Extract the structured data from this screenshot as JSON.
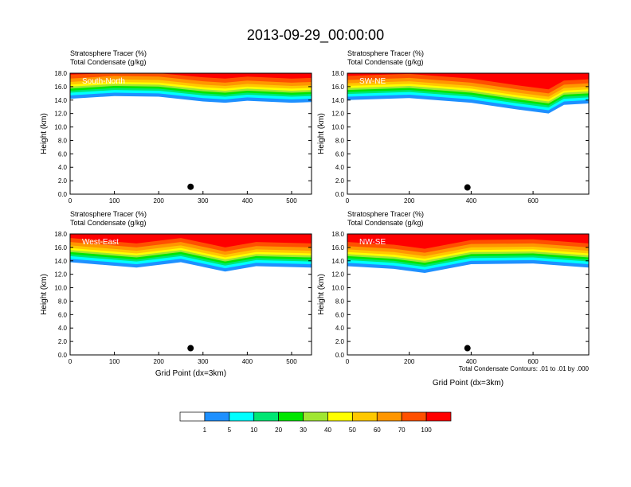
{
  "title": "2013-09-29_00:00:00",
  "chart_data": [
    {
      "type": "contour",
      "panel": "South-North",
      "subtitle_1": "Stratosphere Tracer   (%)",
      "subtitle_2": "Total Condensate   (g/kg)",
      "ylabel": "Height (km)",
      "xlabel": "",
      "xlim": [
        0,
        545
      ],
      "xticks": [
        "0",
        "100",
        "200",
        "300",
        "400",
        "500"
      ],
      "xtick_values": [
        0,
        100,
        200,
        300,
        400,
        500
      ],
      "ylim": [
        0,
        18
      ],
      "yticks": [
        "0.0",
        "2.0",
        "4.0",
        "6.0",
        "8.0",
        "10.0",
        "12.0",
        "14.0",
        "16.0",
        "18.0"
      ],
      "yvalues": [
        0,
        2,
        4,
        6,
        8,
        10,
        12,
        14,
        16,
        18
      ],
      "tracer_top_km": 18,
      "tracer_base_km": [
        [
          0,
          14.2
        ],
        [
          100,
          14.6
        ],
        [
          200,
          14.5
        ],
        [
          300,
          13.8
        ],
        [
          350,
          13.6
        ],
        [
          400,
          13.9
        ],
        [
          500,
          13.6
        ],
        [
          545,
          13.7
        ]
      ],
      "marker_x": 272,
      "marker_km": 1.1
    },
    {
      "type": "contour",
      "panel": "SW-NE",
      "subtitle_1": "Stratosphere Tracer   (%)",
      "subtitle_2": "Total Condensate   (g/kg)",
      "ylabel": "Height (km)",
      "xlabel": "",
      "xlim": [
        0,
        780
      ],
      "xticks": [
        "0",
        "200",
        "400",
        "600"
      ],
      "xtick_values": [
        0,
        200,
        400,
        600
      ],
      "ylim": [
        0,
        18
      ],
      "yticks": [
        "0.0",
        "2.0",
        "4.0",
        "6.0",
        "8.0",
        "10.0",
        "12.0",
        "14.0",
        "16.0",
        "18.0"
      ],
      "yvalues": [
        0,
        2,
        4,
        6,
        8,
        10,
        12,
        14,
        16,
        18
      ],
      "tracer_top_km": 18,
      "tracer_base_km": [
        [
          0,
          14.0
        ],
        [
          200,
          14.3
        ],
        [
          400,
          13.6
        ],
        [
          550,
          12.6
        ],
        [
          650,
          12.0
        ],
        [
          700,
          13.3
        ],
        [
          780,
          13.5
        ]
      ],
      "marker_x": 388,
      "marker_km": 1.0
    },
    {
      "type": "contour",
      "panel": "West-East",
      "subtitle_1": "Stratosphere Tracer   (%)",
      "subtitle_2": "Total Condensate   (g/kg)",
      "ylabel": "Height (km)",
      "xlabel": "Grid Point (dx=3km)",
      "xlim": [
        0,
        545
      ],
      "xticks": [
        "0",
        "100",
        "200",
        "300",
        "400",
        "500"
      ],
      "xtick_values": [
        0,
        100,
        200,
        300,
        400,
        500
      ],
      "ylim": [
        0,
        18
      ],
      "yticks": [
        "0.0",
        "2.0",
        "4.0",
        "6.0",
        "8.0",
        "10.0",
        "12.0",
        "14.0",
        "16.0",
        "18.0"
      ],
      "yvalues": [
        0,
        2,
        4,
        6,
        8,
        10,
        12,
        14,
        16,
        18
      ],
      "tracer_top_km": 18,
      "tracer_base_km": [
        [
          0,
          13.8
        ],
        [
          150,
          13.0
        ],
        [
          250,
          13.8
        ],
        [
          350,
          12.4
        ],
        [
          420,
          13.2
        ],
        [
          545,
          13.0
        ]
      ],
      "marker_x": 272,
      "marker_km": 1.0
    },
    {
      "type": "contour",
      "panel": "NW-SE",
      "subtitle_1": "Stratosphere Tracer   (%)",
      "subtitle_2": "Total Condensate   (g/kg)",
      "ylabel": "Height (km)",
      "xlabel": "Grid Point (dx=3km)",
      "note": "Total Condensate Contours: .01 to .01 by .000",
      "xlim": [
        0,
        780
      ],
      "xticks": [
        "0",
        "200",
        "400",
        "600"
      ],
      "xtick_values": [
        0,
        200,
        400,
        600
      ],
      "ylim": [
        0,
        18
      ],
      "yticks": [
        "0.0",
        "2.0",
        "4.0",
        "6.0",
        "8.0",
        "10.0",
        "12.0",
        "14.0",
        "16.0",
        "18.0"
      ],
      "yvalues": [
        0,
        2,
        4,
        6,
        8,
        10,
        12,
        14,
        16,
        18
      ],
      "tracer_top_km": 18,
      "tracer_base_km": [
        [
          0,
          13.2
        ],
        [
          150,
          12.8
        ],
        [
          250,
          12.2
        ],
        [
          400,
          13.5
        ],
        [
          600,
          13.6
        ],
        [
          780,
          13.0
        ]
      ],
      "marker_x": 388,
      "marker_km": 1.0
    }
  ],
  "colorbar": {
    "colors": [
      "#ffffff",
      "#1e90ff",
      "#00ffff",
      "#00e673",
      "#00e600",
      "#a0e632",
      "#ffff00",
      "#ffc800",
      "#ff9600",
      "#ff5000",
      "#ff0000"
    ],
    "labels": [
      "1",
      "5",
      "10",
      "20",
      "30",
      "40",
      "50",
      "60",
      "70",
      "100"
    ]
  }
}
